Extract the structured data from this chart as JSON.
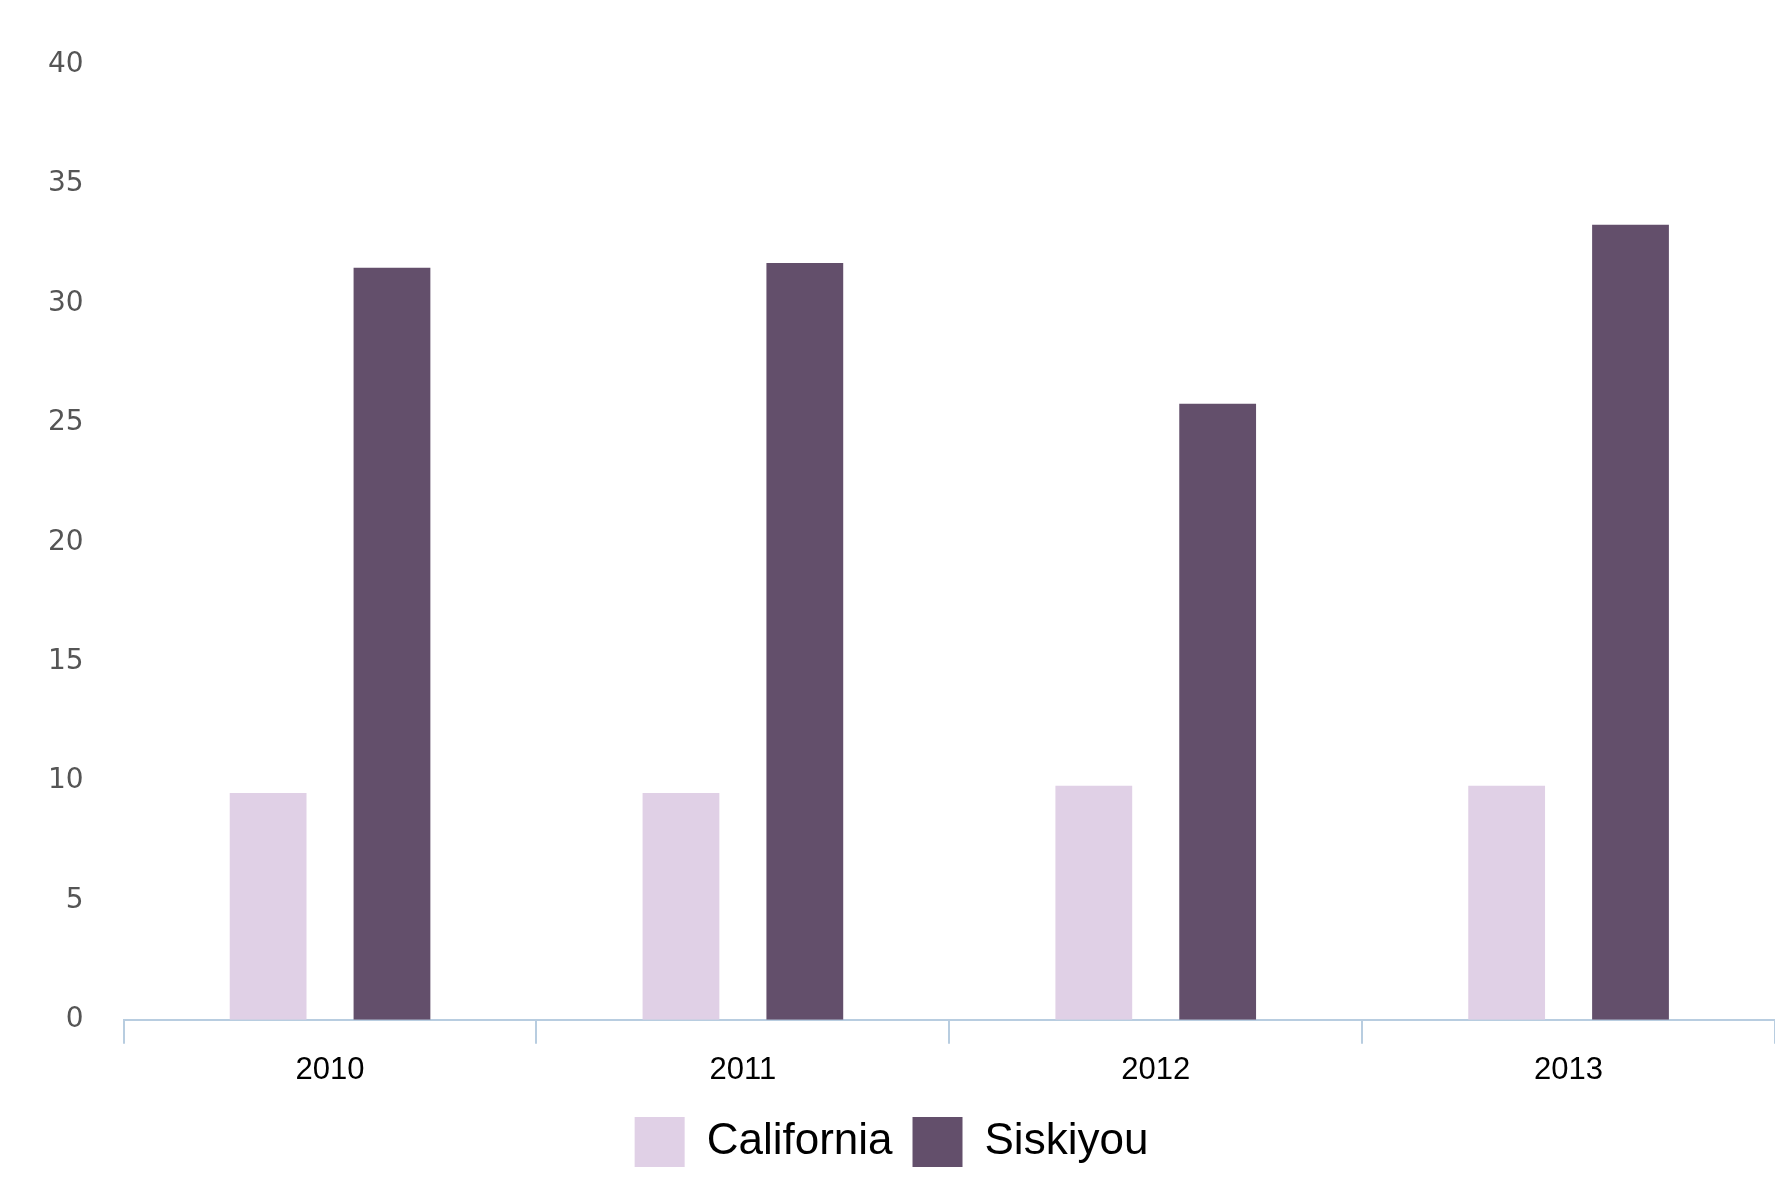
{
  "chart_data": {
    "type": "bar",
    "categories": [
      "2010",
      "2011",
      "2012",
      "2013"
    ],
    "series": [
      {
        "name": "California",
        "color": "#e0d0e6",
        "values": [
          9.5,
          9.5,
          9.8,
          9.8
        ]
      },
      {
        "name": "Siskiyou",
        "color": "#634f6b",
        "values": [
          31.5,
          31.7,
          25.8,
          33.3
        ]
      }
    ],
    "ylim": [
      0,
      40
    ],
    "yticks": [
      0,
      5,
      10,
      15,
      20,
      25,
      30,
      35,
      40
    ],
    "grid": false,
    "legend": "bottom"
  }
}
